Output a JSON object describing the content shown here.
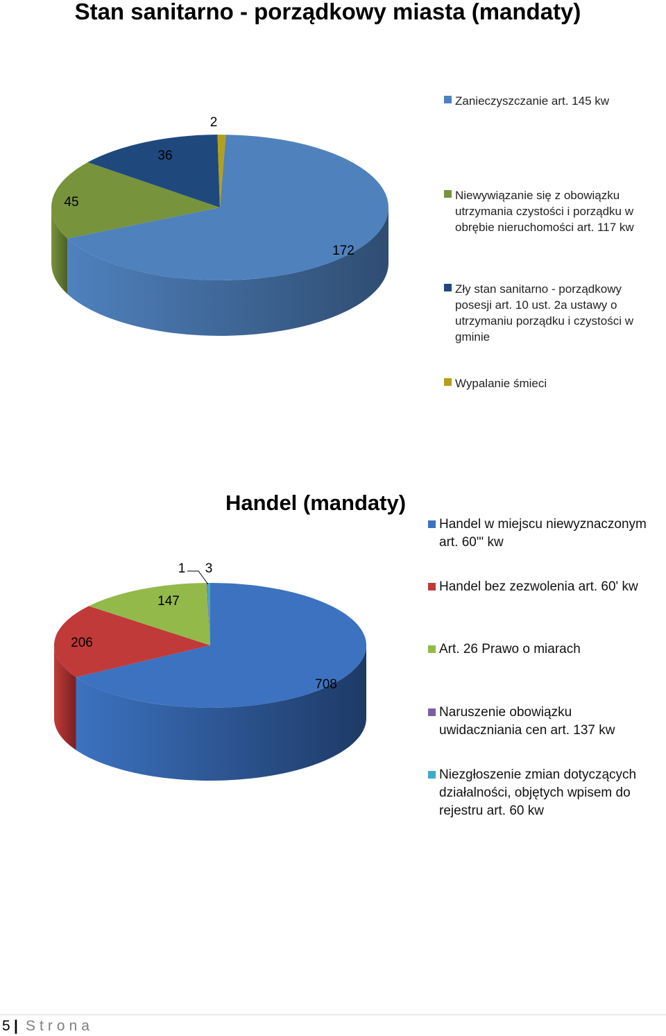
{
  "footer": {
    "page_number": "5",
    "separator": "|",
    "word": "Strona"
  },
  "colors": {
    "chart1": [
      "#4f81bd",
      "#77933c",
      "#1f497d",
      "#b3a01a"
    ],
    "chart1_side": [
      "#2f4d72",
      "#4b6026",
      "#13304f",
      "#7a6c10"
    ],
    "chart2": [
      "#3c72c0",
      "#c03a3a",
      "#93b94a",
      "#7d5ea6",
      "#3fa9c9"
    ],
    "chart2_side": [
      "#1e3a66",
      "#7a2020",
      "#5d7a2a",
      "#4d3868",
      "#26708a"
    ]
  },
  "chart_data": [
    {
      "type": "pie",
      "title": "Stan sanitarno - porządkowy miasta (mandaty)",
      "categories": [
        "Zanieczyszczanie art. 145 kw",
        "Niewywiązanie się z obowiązku utrzymania czystości i porządku w obrębie nieruchomości art. 117 kw",
        "Zły stan sanitarno - porządkowy posesji art. 10 ust. 2a ustawy o utrzymaniu porządku i czystości w gminie",
        "Wypalanie śmieci"
      ],
      "values": [
        172,
        45,
        36,
        2
      ],
      "legend": "right"
    },
    {
      "type": "pie",
      "title": "Handel (mandaty)",
      "categories": [
        "Handel w miejscu niewyznaczonym art. 60\"' kw",
        "Handel bez zezwolenia art. 60' kw",
        "Art. 26 Prawo o miarach",
        "Naruszenie obowiązku uwidaczniania cen art. 137 kw",
        "Niezgłoszenie zmian dotyczących działalności, objętych wpisem do rejestru art. 60 kw"
      ],
      "values": [
        708,
        206,
        147,
        1,
        3
      ],
      "legend": "right"
    }
  ]
}
